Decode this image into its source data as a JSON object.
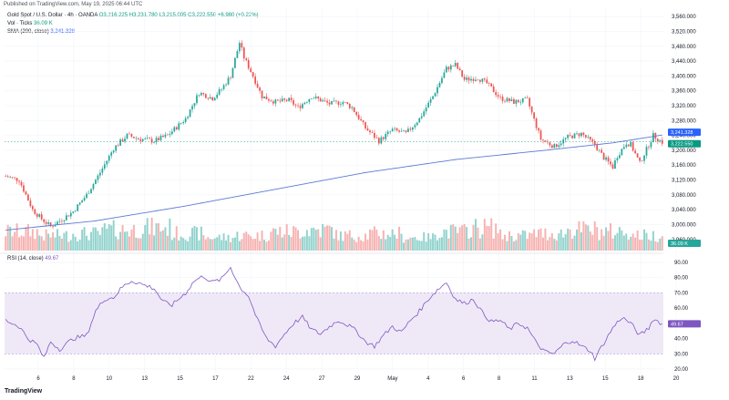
{
  "header": {
    "published": "Published on TradingView.com, May 19, 2025 06:44 UTC"
  },
  "legend": {
    "main_name": "Gold Spot / U.S. Dollar · 4h · OANDA",
    "ohlc": "O3,216.225 H3,231.780 L3,215.005 C3,222.550 +6.980 (+0.22%)",
    "vol_label": "Vol · Ticks",
    "vol_value": "36.09 K",
    "sma_label": "SMA (200, close)",
    "sma_value": "3,241.328",
    "rsi_label": "RSI (14, close)",
    "rsi_value": "49.67"
  },
  "badges": {
    "sma": "3,241.328",
    "price": "3,222.550",
    "vol": "36.09 K",
    "rsi": "49.67"
  },
  "colors": {
    "up": "#26a69a",
    "down": "#ef5350",
    "up_vol": "#80cbc4",
    "down_vol": "#f5a6a4",
    "sma": "#5b7bd5",
    "rsi": "#7e57c2",
    "rsi_band": "#ede7f6",
    "price_badge": "#089981",
    "sma_badge": "#2962ff",
    "rsi_badge": "#7e57c2"
  },
  "logo": "TradingView",
  "chart_data": [
    {
      "type": "candlestick",
      "price_axis_ticks": [
        "3,560.000",
        "3,520.000",
        "3,480.000",
        "3,440.000",
        "3,400.000",
        "3,360.000",
        "3,320.000",
        "3,280.000",
        "3,240.000",
        "3,200.000",
        "3,160.000",
        "3,120.000",
        "3,080.000",
        "3,040.000",
        "3,000.000",
        "2,960.000"
      ],
      "price_tick_values": [
        3560,
        3520,
        3480,
        3440,
        3400,
        3360,
        3320,
        3280,
        3240,
        3200,
        3160,
        3120,
        3080,
        3040,
        3000,
        2960
      ],
      "x_tick_labels": [
        "6",
        "8",
        "10",
        "13",
        "15",
        "17",
        "22",
        "24",
        "27",
        "29",
        "May",
        "4",
        "6",
        "8",
        "11",
        "13",
        "15",
        "18",
        "20"
      ],
      "ylim": [
        2930,
        3580
      ],
      "price_waypoints": [
        [
          0,
          3130
        ],
        [
          6,
          3120
        ],
        [
          12,
          3040
        ],
        [
          16,
          3015
        ],
        [
          20,
          2995
        ],
        [
          24,
          3010
        ],
        [
          30,
          3035
        ],
        [
          36,
          3080
        ],
        [
          42,
          3140
        ],
        [
          48,
          3205
        ],
        [
          54,
          3240
        ],
        [
          60,
          3230
        ],
        [
          66,
          3225
        ],
        [
          72,
          3240
        ],
        [
          80,
          3285
        ],
        [
          86,
          3355
        ],
        [
          92,
          3340
        ],
        [
          96,
          3365
        ],
        [
          100,
          3400
        ],
        [
          104,
          3490
        ],
        [
          106,
          3450
        ],
        [
          110,
          3400
        ],
        [
          114,
          3345
        ],
        [
          120,
          3330
        ],
        [
          126,
          3335
        ],
        [
          130,
          3315
        ],
        [
          136,
          3345
        ],
        [
          144,
          3325
        ],
        [
          150,
          3330
        ],
        [
          154,
          3315
        ],
        [
          160,
          3260
        ],
        [
          166,
          3225
        ],
        [
          172,
          3255
        ],
        [
          178,
          3245
        ],
        [
          184,
          3285
        ],
        [
          190,
          3345
        ],
        [
          196,
          3420
        ],
        [
          200,
          3430
        ],
        [
          204,
          3390
        ],
        [
          210,
          3395
        ],
        [
          214,
          3380
        ],
        [
          220,
          3340
        ],
        [
          226,
          3330
        ],
        [
          232,
          3335
        ],
        [
          238,
          3230
        ],
        [
          244,
          3210
        ],
        [
          250,
          3235
        ],
        [
          256,
          3245
        ],
        [
          262,
          3215
        ],
        [
          266,
          3180
        ],
        [
          270,
          3155
        ],
        [
          272,
          3185
        ],
        [
          276,
          3220
        ],
        [
          278,
          3215
        ],
        [
          282,
          3165
        ],
        [
          284,
          3190
        ],
        [
          288,
          3240
        ],
        [
          292,
          3222
        ]
      ],
      "sma_waypoints": [
        [
          0,
          2985
        ],
        [
          40,
          3010
        ],
        [
          80,
          3050
        ],
        [
          120,
          3095
        ],
        [
          160,
          3140
        ],
        [
          200,
          3175
        ],
        [
          240,
          3200
        ],
        [
          270,
          3220
        ],
        [
          292,
          3241
        ]
      ],
      "volume_profile": [
        0.8,
        0.6,
        0.7,
        0.9,
        1.0,
        0.7,
        0.5,
        0.6,
        0.8,
        0.9,
        0.6,
        0.7,
        0.5,
        0.8,
        1.0,
        0.6,
        0.7,
        0.9,
        0.8,
        0.6
      ],
      "candle_count": 293
    },
    {
      "type": "line",
      "name": "RSI",
      "rsi_axis_ticks": [
        "90.00",
        "80.00",
        "70.00",
        "60.00",
        "50.00",
        "40.00",
        "30.00",
        "20.00"
      ],
      "rsi_tick_values": [
        90,
        80,
        70,
        60,
        50,
        40,
        30,
        20
      ],
      "band": [
        30,
        70
      ],
      "ylim": [
        17,
        93
      ],
      "rsi_waypoints": [
        [
          0,
          52
        ],
        [
          6,
          48
        ],
        [
          10,
          40
        ],
        [
          14,
          36
        ],
        [
          17,
          27
        ],
        [
          20,
          38
        ],
        [
          24,
          33
        ],
        [
          30,
          40
        ],
        [
          36,
          42
        ],
        [
          40,
          58
        ],
        [
          44,
          66
        ],
        [
          48,
          67
        ],
        [
          52,
          74
        ],
        [
          56,
          78
        ],
        [
          60,
          76
        ],
        [
          66,
          73
        ],
        [
          70,
          64
        ],
        [
          74,
          62
        ],
        [
          80,
          70
        ],
        [
          84,
          78
        ],
        [
          88,
          81
        ],
        [
          92,
          77
        ],
        [
          96,
          79
        ],
        [
          100,
          87
        ],
        [
          104,
          74
        ],
        [
          108,
          68
        ],
        [
          112,
          52
        ],
        [
          116,
          40
        ],
        [
          120,
          35
        ],
        [
          124,
          43
        ],
        [
          128,
          50
        ],
        [
          132,
          54
        ],
        [
          136,
          46
        ],
        [
          140,
          43
        ],
        [
          144,
          48
        ],
        [
          148,
          52
        ],
        [
          152,
          49
        ],
        [
          156,
          45
        ],
        [
          160,
          38
        ],
        [
          164,
          35
        ],
        [
          168,
          42
        ],
        [
          172,
          48
        ],
        [
          176,
          44
        ],
        [
          180,
          52
        ],
        [
          184,
          58
        ],
        [
          188,
          66
        ],
        [
          192,
          72
        ],
        [
          196,
          77
        ],
        [
          200,
          66
        ],
        [
          204,
          63
        ],
        [
          208,
          66
        ],
        [
          212,
          57
        ],
        [
          216,
          51
        ],
        [
          220,
          52
        ],
        [
          224,
          46
        ],
        [
          228,
          50
        ],
        [
          232,
          47
        ],
        [
          236,
          37
        ],
        [
          240,
          31
        ],
        [
          244,
          30
        ],
        [
          248,
          36
        ],
        [
          252,
          39
        ],
        [
          256,
          35
        ],
        [
          260,
          32
        ],
        [
          262,
          27
        ],
        [
          266,
          37
        ],
        [
          270,
          47
        ],
        [
          274,
          54
        ],
        [
          278,
          50
        ],
        [
          282,
          42
        ],
        [
          286,
          47
        ],
        [
          288,
          53
        ],
        [
          292,
          49.67
        ]
      ]
    }
  ]
}
